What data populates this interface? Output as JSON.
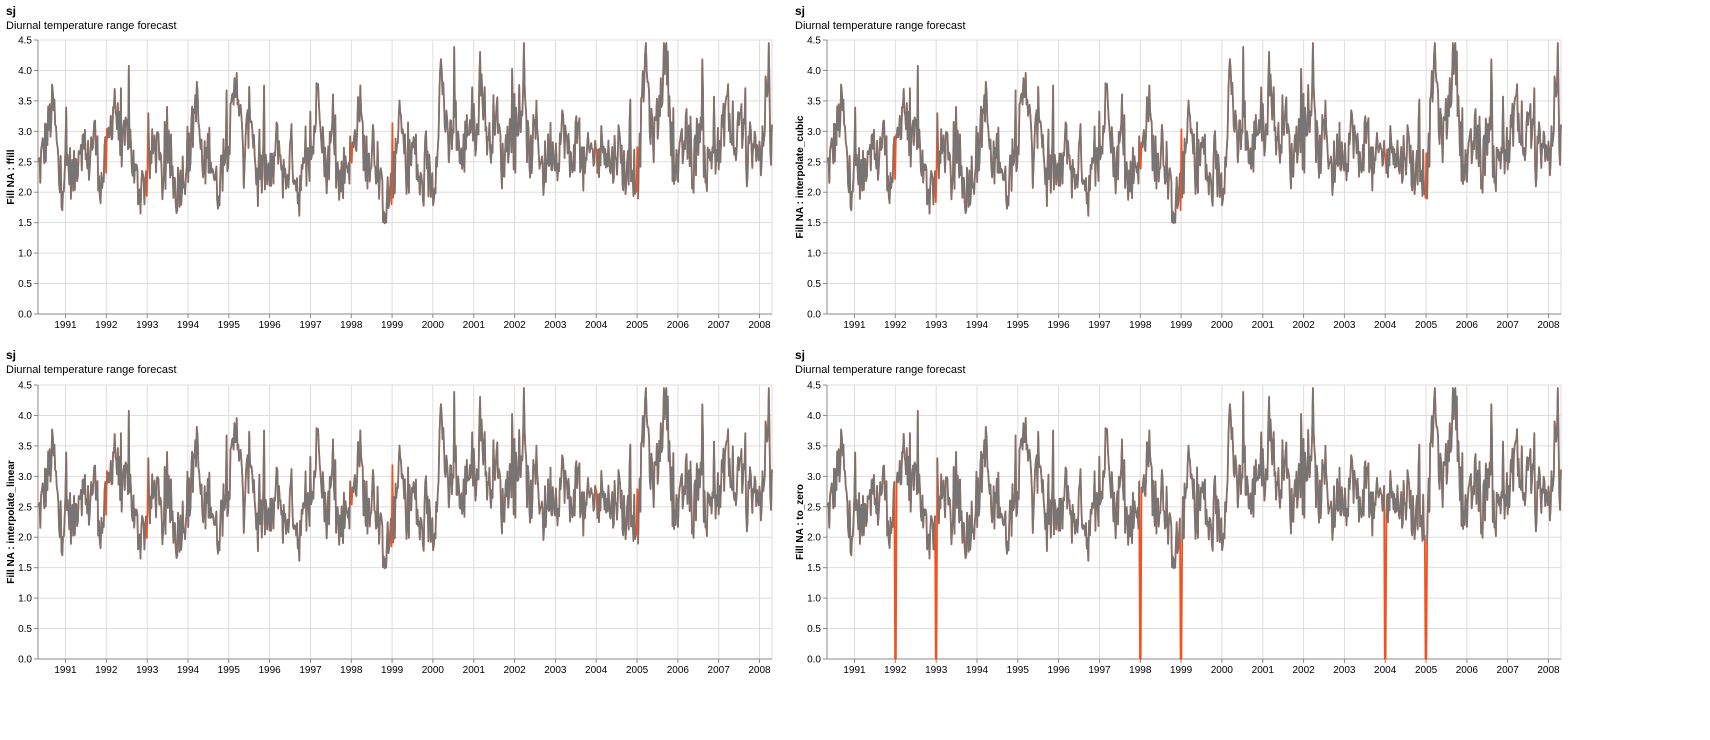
{
  "colors": {
    "orange": "#f4511e",
    "gray": "#757575",
    "grid": "#dddddd",
    "axis": "#888888",
    "text": "#000000"
  },
  "panels": [
    {
      "title": "sj",
      "subtitle": "Diurnal temperature range forecast",
      "ylabel": "Fill NA : ffill"
    },
    {
      "title": "sj",
      "subtitle": "Diurnal temperature range forecast",
      "ylabel": "Fill NA : interpolate_cubic"
    },
    {
      "title": "sj",
      "subtitle": "Diurnal temperature range forecast",
      "ylabel": "Fill NA : interpolate_linear"
    },
    {
      "title": "sj",
      "subtitle": "Diurnal temperature range forecast",
      "ylabel": "Fill NA : to_zero"
    }
  ],
  "chart_data": {
    "type": "line",
    "xlim": [
      "1990-04-30",
      "2008-04-22"
    ],
    "ylim": [
      0,
      4.5
    ],
    "x_ticks": [
      "1991",
      "1992",
      "1993",
      "1994",
      "1995",
      "1996",
      "1997",
      "1998",
      "1999",
      "2000",
      "2001",
      "2002",
      "2003",
      "2004",
      "2005",
      "2006",
      "2007",
      "2008"
    ],
    "y_ticks": [
      "0.0",
      "0.5",
      "1.0",
      "1.5",
      "2.0",
      "2.5",
      "3.0",
      "3.5",
      "4.0",
      "4.5"
    ],
    "grid": true,
    "series": [
      {
        "color": "orange",
        "values_note_hidden": false
      },
      {
        "color": "gray"
      }
    ],
    "base_points": [
      [
        "1990-05",
        2.4
      ],
      [
        "1990-07",
        2.9
      ],
      [
        "1990-09",
        3.45
      ],
      [
        "1990-11",
        2.0
      ],
      [
        "1991-01",
        2.5
      ],
      [
        "1991-03",
        2.2
      ],
      [
        "1991-05",
        2.9
      ],
      [
        "1991-07",
        2.4
      ],
      [
        "1991-09",
        3.0
      ],
      [
        "1991-11",
        2.1
      ],
      [
        "1992-01",
        2.7
      ],
      [
        "1992-03",
        3.6
      ],
      [
        "1992-05",
        2.5
      ],
      [
        "1992-07",
        3.1
      ],
      [
        "1992-09",
        2.2
      ],
      [
        "1992-11",
        2.0
      ],
      [
        "1993-01",
        2.4
      ],
      [
        "1993-03",
        2.8
      ],
      [
        "1993-05",
        2.2
      ],
      [
        "1993-07",
        2.6
      ],
      [
        "1993-09",
        2.0
      ],
      [
        "1993-11",
        2.3
      ],
      [
        "1994-01",
        2.6
      ],
      [
        "1994-03",
        3.6
      ],
      [
        "1994-05",
        2.3
      ],
      [
        "1994-07",
        2.8
      ],
      [
        "1994-09",
        2.0
      ],
      [
        "1994-11",
        2.5
      ],
      [
        "1995-01",
        3.0
      ],
      [
        "1995-03",
        4.0
      ],
      [
        "1995-05",
        2.4
      ],
      [
        "1995-07",
        3.5
      ],
      [
        "1995-09",
        2.1
      ],
      [
        "1995-11",
        2.4
      ],
      [
        "1996-01",
        2.2
      ],
      [
        "1996-03",
        2.9
      ],
      [
        "1996-05",
        2.1
      ],
      [
        "1996-07",
        2.7
      ],
      [
        "1996-09",
        2.0
      ],
      [
        "1996-11",
        2.3
      ],
      [
        "1997-01",
        2.6
      ],
      [
        "1997-03",
        3.85
      ],
      [
        "1997-05",
        2.3
      ],
      [
        "1997-07",
        2.9
      ],
      [
        "1997-09",
        2.1
      ],
      [
        "1997-11",
        2.5
      ],
      [
        "1998-01",
        2.6
      ],
      [
        "1998-03",
        3.5
      ],
      [
        "1998-05",
        2.3
      ],
      [
        "1998-07",
        2.9
      ],
      [
        "1998-09",
        2.0
      ],
      [
        "1998-11",
        1.8
      ],
      [
        "1999-01",
        2.2
      ],
      [
        "1999-03",
        3.2
      ],
      [
        "1999-05",
        2.3
      ],
      [
        "1999-07",
        2.8
      ],
      [
        "1999-09",
        2.0
      ],
      [
        "1999-11",
        2.3
      ],
      [
        "2000-01",
        2.1
      ],
      [
        "2000-03",
        4.1
      ],
      [
        "2000-05",
        2.6
      ],
      [
        "2000-07",
        3.3
      ],
      [
        "2000-09",
        2.4
      ],
      [
        "2000-11",
        3.2
      ],
      [
        "2001-01",
        3.0
      ],
      [
        "2001-03",
        3.8
      ],
      [
        "2001-05",
        2.7
      ],
      [
        "2001-07",
        3.4
      ],
      [
        "2001-09",
        2.4
      ],
      [
        "2001-11",
        3.0
      ],
      [
        "2002-01",
        2.7
      ],
      [
        "2002-03",
        3.6
      ],
      [
        "2002-05",
        2.5
      ],
      [
        "2002-07",
        3.1
      ],
      [
        "2002-09",
        2.3
      ],
      [
        "2002-11",
        2.8
      ],
      [
        "2003-01",
        2.6
      ],
      [
        "2003-03",
        3.1
      ],
      [
        "2003-05",
        2.4
      ],
      [
        "2003-07",
        3.0
      ],
      [
        "2003-09",
        2.3
      ],
      [
        "2003-11",
        2.7
      ],
      [
        "2004-01",
        2.5
      ],
      [
        "2004-03",
        2.9
      ],
      [
        "2004-05",
        2.4
      ],
      [
        "2004-07",
        2.8
      ],
      [
        "2004-09",
        2.3
      ],
      [
        "2004-11",
        2.4
      ],
      [
        "2005-01",
        2.3
      ],
      [
        "2005-03",
        4.35
      ],
      [
        "2005-05",
        2.8
      ],
      [
        "2005-07",
        3.3
      ],
      [
        "2005-09",
        4.45
      ],
      [
        "2005-11",
        2.6
      ],
      [
        "2006-01",
        2.4
      ],
      [
        "2006-03",
        3.0
      ],
      [
        "2006-05",
        2.3
      ],
      [
        "2006-07",
        3.2
      ],
      [
        "2006-09",
        2.3
      ],
      [
        "2006-11",
        2.8
      ],
      [
        "2007-01",
        2.6
      ],
      [
        "2007-03",
        3.6
      ],
      [
        "2007-05",
        2.5
      ],
      [
        "2007-07",
        3.3
      ],
      [
        "2007-09",
        2.4
      ],
      [
        "2007-11",
        3.0
      ],
      [
        "2008-01",
        2.5
      ],
      [
        "2008-03",
        3.9
      ],
      [
        "2008-04",
        2.8
      ]
    ],
    "missing_dates": [
      "1991-12-31",
      "1992-12-31",
      "1997-12-31",
      "1998-12-31",
      "2003-12-31",
      "2004-12-31"
    ]
  }
}
